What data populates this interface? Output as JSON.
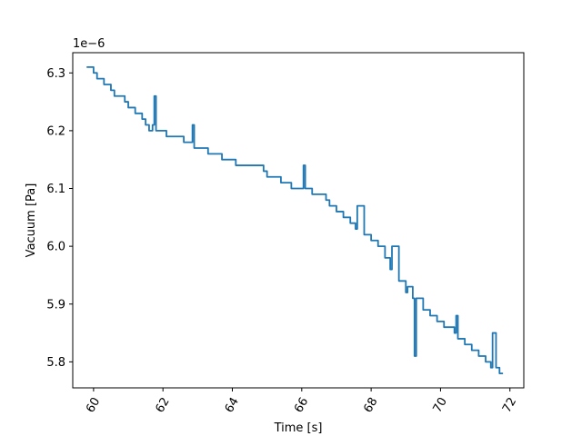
{
  "chart_data": {
    "type": "line",
    "title": "",
    "xlabel": "Time [s]",
    "ylabel": "Vacuum [Pa]",
    "y_offset_text": "1e−6",
    "xlim": [
      59.4,
      72.4
    ],
    "ylim": [
      5.755,
      6.335
    ],
    "x_ticks": [
      60,
      62,
      64,
      66,
      68,
      70,
      72
    ],
    "x_tick_labels": [
      "60",
      "62",
      "64",
      "66",
      "68",
      "70",
      "72"
    ],
    "x_tick_rotation_deg": 60,
    "y_ticks": [
      5.8,
      5.9,
      6.0,
      6.1,
      6.2,
      6.3
    ],
    "y_tick_labels": [
      "5.8",
      "5.9",
      "6.0",
      "6.1",
      "6.2",
      "6.3"
    ],
    "grid": false,
    "series": [
      {
        "name": "Vacuum",
        "color": "#1f77b4",
        "x": [
          59.8,
          60.0,
          60.1,
          60.2,
          60.3,
          60.4,
          60.5,
          60.6,
          60.7,
          60.9,
          61.0,
          61.2,
          61.4,
          61.5,
          61.6,
          61.7,
          61.75,
          61.8,
          62.0,
          62.1,
          62.2,
          62.4,
          62.6,
          62.8,
          62.85,
          62.9,
          63.1,
          63.3,
          63.5,
          63.7,
          63.9,
          64.0,
          64.1,
          64.3,
          64.5,
          64.7,
          64.9,
          65.0,
          65.2,
          65.4,
          65.5,
          65.7,
          65.9,
          66.05,
          66.1,
          66.3,
          66.5,
          66.7,
          66.8,
          67.0,
          67.2,
          67.4,
          67.55,
          67.6,
          67.8,
          68.0,
          68.2,
          68.4,
          68.55,
          68.6,
          68.8,
          69.0,
          69.05,
          69.2,
          69.25,
          69.3,
          69.5,
          69.7,
          69.9,
          70.1,
          70.3,
          70.4,
          70.45,
          70.5,
          70.7,
          70.9,
          71.1,
          71.3,
          71.45,
          71.5,
          71.6,
          71.7,
          71.8
        ],
        "y": [
          6.31,
          6.3,
          6.29,
          6.29,
          6.28,
          6.28,
          6.27,
          6.26,
          6.26,
          6.25,
          6.24,
          6.23,
          6.22,
          6.21,
          6.2,
          6.21,
          6.26,
          6.2,
          6.2,
          6.19,
          6.19,
          6.19,
          6.18,
          6.18,
          6.21,
          6.17,
          6.17,
          6.16,
          6.16,
          6.15,
          6.15,
          6.15,
          6.14,
          6.14,
          6.14,
          6.14,
          6.13,
          6.12,
          6.12,
          6.11,
          6.11,
          6.1,
          6.1,
          6.14,
          6.1,
          6.09,
          6.09,
          6.08,
          6.07,
          6.06,
          6.05,
          6.04,
          6.03,
          6.07,
          6.02,
          6.01,
          6.0,
          5.98,
          5.96,
          6.0,
          5.94,
          5.92,
          5.93,
          5.91,
          5.81,
          5.91,
          5.89,
          5.88,
          5.87,
          5.86,
          5.86,
          5.85,
          5.88,
          5.84,
          5.83,
          5.82,
          5.81,
          5.8,
          5.79,
          5.85,
          5.79,
          5.78,
          5.78
        ]
      }
    ]
  }
}
